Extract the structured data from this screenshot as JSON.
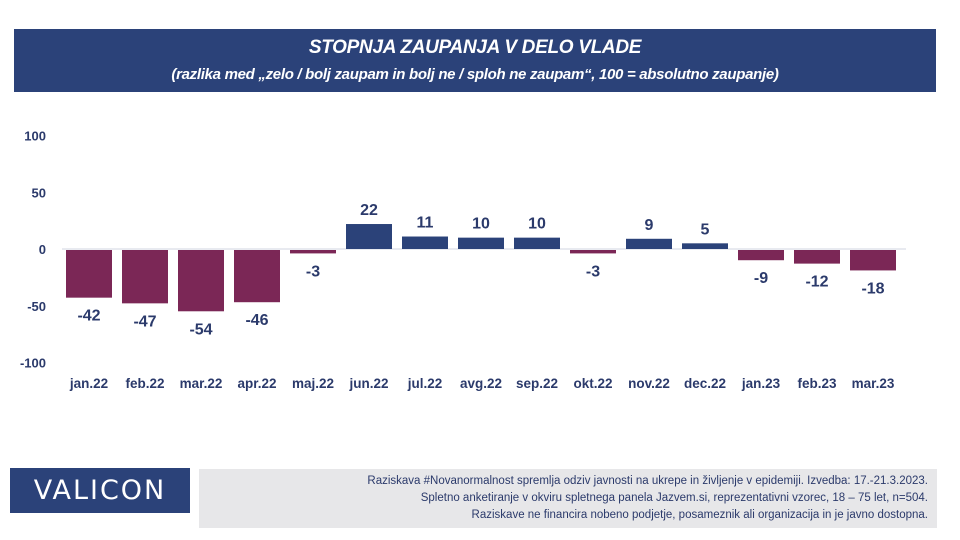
{
  "header": {
    "title": "STOPNJA ZAUPANJA V DELO VLADE",
    "subtitle": "(razlika med „zelo / bolj zaupam in bolj ne / sploh ne zaupam“, 100 = absolutno zaupanje)"
  },
  "chart_data": {
    "type": "bar",
    "title": "STOPNJA ZAUPANJA V DELO VLADE",
    "subtitle": "(razlika med „zelo / bolj zaupam in bolj ne / sploh ne zaupam“, 100 = absolutno zaupanje)",
    "xlabel": "",
    "ylabel": "",
    "categories": [
      "jan.22",
      "feb.22",
      "mar.22",
      "apr.22",
      "maj.22",
      "jun.22",
      "jul.22",
      "avg.22",
      "sep.22",
      "okt.22",
      "nov.22",
      "dec.22",
      "jan.23",
      "feb.23",
      "mar.23"
    ],
    "values": [
      -42,
      -47,
      -54,
      -46,
      -3,
      22,
      11,
      10,
      10,
      -3,
      9,
      5,
      -9,
      -12,
      -18
    ],
    "ylim": [
      -100,
      100
    ],
    "yticks": [
      100,
      50,
      0,
      -50,
      -100
    ],
    "grid": false,
    "legend": "none",
    "colors": {
      "positive": "#2b4279",
      "negative": "#7b2756",
      "text": "#2b3a6b",
      "zero_line": "#d0d6e2"
    }
  },
  "footer": {
    "logo": "VALICON",
    "lines": [
      "Raziskava #Novanormalnost spremlja odziv javnosti na ukrepe in življenje v epidemiji. Izvedba: 17.-21.3.2023.",
      "Spletno anketiranje v okviru spletnega panela Jazvem.si, reprezentativni vzorec, 18 – 75 let, n=504.",
      "Raziskave ne financira nobeno podjetje, posameznik ali organizacija in je javno dostopna."
    ]
  }
}
